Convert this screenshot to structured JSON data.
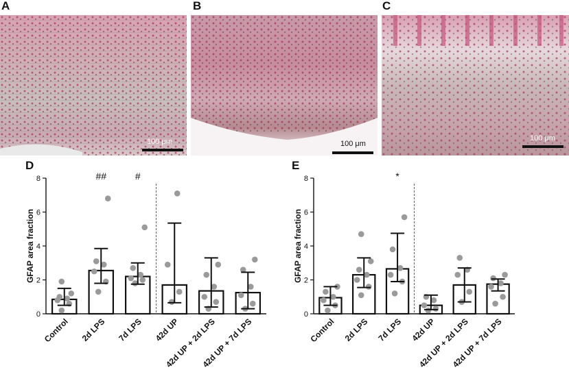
{
  "panels": {
    "a": {
      "letter": "A",
      "scale_label": "100 μm",
      "scale_label_color": "#ffffff"
    },
    "b": {
      "letter": "B",
      "scale_label": "100 μm",
      "scale_label_color": "#111111"
    },
    "c": {
      "letter": "C",
      "scale_label": "100 μm",
      "scale_label_color": "#ffffff"
    }
  },
  "chart_data": [
    {
      "panel": "D",
      "type": "bar",
      "ylabel": "GFAP area fraction",
      "ylim": [
        0,
        8
      ],
      "yticks": [
        "0",
        "2",
        "4",
        "6",
        "8"
      ],
      "categories": [
        "Control",
        "2d LPS",
        "7d LPS",
        "42d UP",
        "42d UP + 2d LPS",
        "42d UP + 7d LPS"
      ],
      "means": [
        0.85,
        2.55,
        2.2,
        1.7,
        1.35,
        1.25
      ],
      "error_low": [
        0.5,
        1.8,
        1.75,
        0.65,
        0.4,
        0.3
      ],
      "error_high": [
        1.5,
        3.85,
        3.0,
        5.35,
        3.3,
        2.45
      ],
      "points": [
        [
          0.2,
          0.6,
          0.8,
          0.9,
          1.0,
          1.2,
          1.9
        ],
        [
          1.3,
          1.9,
          2.5,
          2.9,
          3.1,
          6.8
        ],
        [
          1.8,
          2.0,
          2.1,
          2.3,
          2.7,
          5.1
        ],
        [
          0.7,
          1.3,
          2.9,
          7.1
        ],
        [
          0.3,
          0.7,
          1.0,
          1.6,
          2.3,
          2.9
        ],
        [
          0.3,
          0.6,
          1.1,
          1.6,
          2.6,
          3.2
        ]
      ],
      "annotations": [
        "",
        "##",
        "#",
        "",
        "",
        ""
      ],
      "divider_after_index": 2,
      "grid": false
    },
    {
      "panel": "E",
      "type": "bar",
      "ylabel": "GFAP area fraction",
      "ylim": [
        0,
        8
      ],
      "yticks": [
        "0",
        "2",
        "4",
        "6",
        "8"
      ],
      "categories": [
        "Control",
        "2d LPS",
        "7d LPS",
        "42d UP",
        "42d UP + 2d LPS",
        "42d UP + 7d LPS"
      ],
      "means": [
        0.95,
        2.3,
        2.65,
        0.5,
        1.7,
        1.75
      ],
      "error_low": [
        0.5,
        1.55,
        1.9,
        0.25,
        0.7,
        1.35
      ],
      "error_high": [
        1.6,
        3.3,
        4.75,
        1.1,
        2.7,
        2.05
      ],
      "points": [
        [
          0.2,
          0.5,
          0.8,
          1.0,
          1.3,
          1.6
        ],
        [
          1.1,
          1.6,
          2.0,
          2.3,
          2.6,
          3.1,
          4.7
        ],
        [
          1.2,
          1.9,
          2.3,
          2.7,
          3.8,
          5.7
        ],
        [
          0.2,
          0.3,
          0.5,
          0.8,
          1.0
        ],
        [
          0.7,
          1.3,
          2.3,
          2.6,
          3.3
        ],
        [
          0.6,
          1.0,
          1.6,
          1.8,
          2.1,
          2.3
        ]
      ],
      "annotations": [
        "",
        "",
        "*",
        "",
        "",
        ""
      ],
      "divider_after_index": 2,
      "grid": false
    }
  ]
}
